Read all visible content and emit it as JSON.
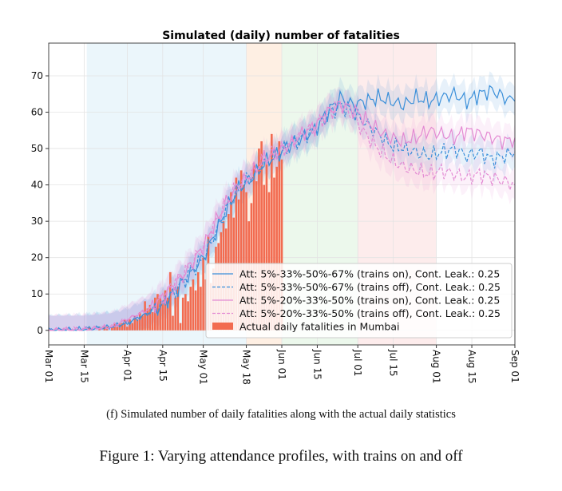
{
  "chart_data": {
    "type": "line",
    "title": "Simulated (daily) number of fatalities",
    "xlabel": "",
    "ylabel": "",
    "x_tick_labels": [
      "Mar 01",
      "Mar 15",
      "Apr 01",
      "Apr 15",
      "May 01",
      "May 18",
      "Jun 01",
      "Jun 15",
      "Jul 01",
      "Jul 15",
      "Aug 01",
      "Aug 15",
      "Sep 01"
    ],
    "x_tick_days": [
      0,
      14,
      31,
      45,
      61,
      78,
      92,
      106,
      122,
      136,
      153,
      167,
      184
    ],
    "x_range_days": [
      0,
      184
    ],
    "ylim": [
      -4,
      79
    ],
    "y_ticks": [
      0,
      10,
      20,
      30,
      40,
      50,
      60,
      70
    ],
    "grid": true,
    "legend_position": "lower-right",
    "shaded_periods": [
      {
        "start_day": 15,
        "end_day": 78,
        "color": "#dbeef7"
      },
      {
        "start_day": 78,
        "end_day": 92,
        "color": "#fde2cc"
      },
      {
        "start_day": 92,
        "end_day": 122,
        "color": "#dcf3dc"
      },
      {
        "start_day": 122,
        "end_day": 153,
        "color": "#fbdcdc"
      }
    ],
    "series": [
      {
        "name": "Att: 5%-33%-50%-67% (trains on), Cont. Leak.: 0.25",
        "color": "#3a8fd9",
        "style": "solid",
        "points": [
          [
            0,
            0
          ],
          [
            14,
            0.3
          ],
          [
            25,
            1
          ],
          [
            31,
            2
          ],
          [
            40,
            5
          ],
          [
            45,
            7
          ],
          [
            50,
            11
          ],
          [
            55,
            15
          ],
          [
            61,
            20
          ],
          [
            66,
            27
          ],
          [
            70,
            33
          ],
          [
            75,
            39
          ],
          [
            80,
            42
          ],
          [
            85,
            46
          ],
          [
            90,
            48
          ],
          [
            95,
            51
          ],
          [
            100,
            53
          ],
          [
            105,
            55
          ],
          [
            110,
            60
          ],
          [
            115,
            64
          ],
          [
            120,
            62
          ],
          [
            125,
            63
          ],
          [
            130,
            64
          ],
          [
            135,
            63
          ],
          [
            140,
            62
          ],
          [
            145,
            64
          ],
          [
            150,
            63
          ],
          [
            155,
            64
          ],
          [
            160,
            65
          ],
          [
            165,
            63
          ],
          [
            170,
            65
          ],
          [
            175,
            66
          ],
          [
            180,
            64
          ],
          [
            184,
            63
          ]
        ]
      },
      {
        "name": "Att: 5%-33%-50%-67% (trains off), Cont. Leak.: 0.25",
        "color": "#3a8fd9",
        "style": "dashed",
        "points": [
          [
            0,
            0
          ],
          [
            14,
            0.3
          ],
          [
            25,
            1
          ],
          [
            31,
            2
          ],
          [
            40,
            5
          ],
          [
            45,
            7
          ],
          [
            50,
            11
          ],
          [
            55,
            15
          ],
          [
            61,
            20
          ],
          [
            66,
            27
          ],
          [
            70,
            33
          ],
          [
            75,
            39
          ],
          [
            80,
            42
          ],
          [
            85,
            46
          ],
          [
            90,
            48
          ],
          [
            95,
            51
          ],
          [
            100,
            53
          ],
          [
            105,
            55
          ],
          [
            110,
            59
          ],
          [
            115,
            62
          ],
          [
            120,
            60
          ],
          [
            125,
            57
          ],
          [
            130,
            54
          ],
          [
            135,
            51
          ],
          [
            140,
            50
          ],
          [
            145,
            49
          ],
          [
            150,
            48
          ],
          [
            155,
            49
          ],
          [
            160,
            50
          ],
          [
            165,
            48
          ],
          [
            170,
            49
          ],
          [
            175,
            47
          ],
          [
            180,
            48
          ],
          [
            184,
            49
          ]
        ]
      },
      {
        "name": "Att: 5%-20%-33%-50% (trains on), Cont. Leak.: 0.25",
        "color": "#e38ad3",
        "style": "solid",
        "points": [
          [
            0,
            0
          ],
          [
            14,
            0.3
          ],
          [
            25,
            1
          ],
          [
            31,
            3
          ],
          [
            40,
            6
          ],
          [
            45,
            9
          ],
          [
            50,
            13
          ],
          [
            55,
            17
          ],
          [
            61,
            23
          ],
          [
            66,
            30
          ],
          [
            70,
            35
          ],
          [
            75,
            40
          ],
          [
            80,
            43
          ],
          [
            85,
            47
          ],
          [
            90,
            49
          ],
          [
            95,
            51
          ],
          [
            100,
            54
          ],
          [
            105,
            56
          ],
          [
            110,
            60
          ],
          [
            115,
            62
          ],
          [
            120,
            61
          ],
          [
            125,
            58
          ],
          [
            130,
            55
          ],
          [
            135,
            53
          ],
          [
            140,
            52
          ],
          [
            145,
            53
          ],
          [
            150,
            55
          ],
          [
            155,
            54
          ],
          [
            160,
            53
          ],
          [
            165,
            55
          ],
          [
            170,
            54
          ],
          [
            175,
            53
          ],
          [
            180,
            52
          ],
          [
            184,
            53
          ]
        ]
      },
      {
        "name": "Att: 5%-20%-33%-50% (trains off), Cont. Leak.: 0.25",
        "color": "#e38ad3",
        "style": "dashed",
        "points": [
          [
            0,
            0
          ],
          [
            14,
            0.3
          ],
          [
            25,
            1
          ],
          [
            31,
            3
          ],
          [
            40,
            6
          ],
          [
            45,
            9
          ],
          [
            50,
            13
          ],
          [
            55,
            17
          ],
          [
            61,
            23
          ],
          [
            66,
            30
          ],
          [
            70,
            35
          ],
          [
            75,
            40
          ],
          [
            80,
            43
          ],
          [
            85,
            47
          ],
          [
            90,
            49
          ],
          [
            95,
            51
          ],
          [
            100,
            54
          ],
          [
            105,
            56
          ],
          [
            110,
            60
          ],
          [
            115,
            62
          ],
          [
            120,
            59
          ],
          [
            125,
            54
          ],
          [
            130,
            50
          ],
          [
            135,
            47
          ],
          [
            140,
            45
          ],
          [
            145,
            44
          ],
          [
            150,
            43
          ],
          [
            155,
            44
          ],
          [
            160,
            43
          ],
          [
            165,
            42
          ],
          [
            170,
            43
          ],
          [
            175,
            42
          ],
          [
            180,
            41
          ],
          [
            184,
            40
          ]
        ]
      }
    ],
    "bar_series": {
      "name": "Actual daily fatalities in Mumbai",
      "color": "#f26b50",
      "start_day": 0,
      "values": [
        0,
        0,
        0,
        0,
        0,
        0,
        0,
        0,
        0,
        0,
        0,
        0,
        0,
        0,
        0,
        0,
        1,
        0,
        0,
        0,
        1,
        0,
        1,
        1,
        0,
        1,
        2,
        1,
        2,
        2,
        3,
        1,
        3,
        2,
        4,
        3,
        5,
        4,
        8,
        6,
        7,
        5,
        9,
        10,
        9,
        8,
        11,
        9,
        16,
        4,
        9,
        12,
        2,
        9,
        10,
        8,
        12,
        14,
        11,
        16,
        12,
        20,
        14,
        26,
        13,
        17,
        23,
        24,
        27,
        30,
        28,
        32,
        38,
        31,
        42,
        36,
        44,
        40,
        38,
        30,
        35,
        46,
        41,
        50,
        52,
        40,
        46,
        38,
        54,
        42,
        45,
        52,
        47
      ]
    },
    "legend_labels": [
      "Att: 5%-33%-50%-67% (trains on), Cont. Leak.: 0.25",
      "Att: 5%-33%-50%-67% (trains off), Cont. Leak.: 0.25",
      "Att: 5%-20%-33%-50% (trains on), Cont. Leak.: 0.25",
      "Att: 5%-20%-33%-50% (trains off), Cont. Leak.: 0.25",
      "Actual daily fatalities in Mumbai"
    ]
  },
  "captions": {
    "subfigure": "(f) Simulated number of daily fatalities along with the actual daily statistics",
    "figure": "Figure 1: Varying attendance profiles, with trains on and off"
  }
}
